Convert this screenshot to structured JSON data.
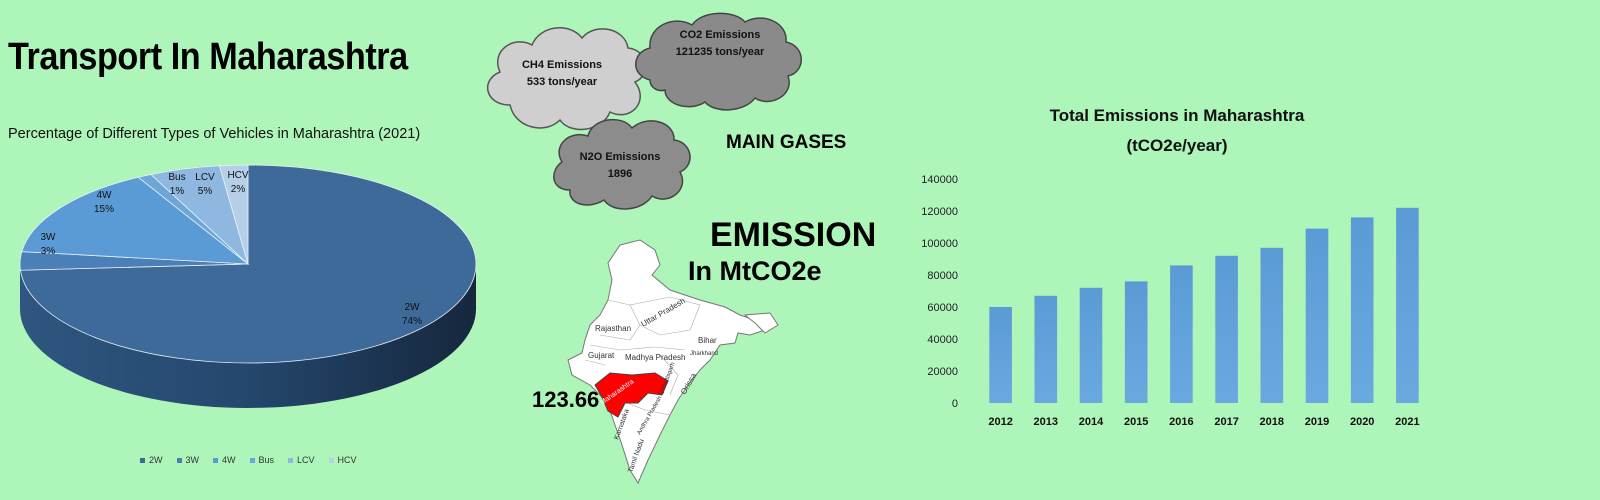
{
  "header": {
    "title": "Transport In Maharashtra"
  },
  "clouds": [
    {
      "line1": "CH4 Emissions",
      "line2": "533 tons/year"
    },
    {
      "line1": "CO2 Emissions",
      "line2": "121235 tons/year"
    },
    {
      "line1": "N2O Emissions",
      "line2": "1896"
    }
  ],
  "labels": {
    "main_gases": "MAIN GASES",
    "emission": "EMISSION",
    "in_mtco2e": "In MtCO2e",
    "map_value": "123.66"
  },
  "map": {
    "state_labels": [
      "Rajasthan",
      "Uttar Pradesh",
      "Bihar",
      "Gujarat",
      "Madhya Pradesh",
      "Maharashtra",
      "Orissa",
      "Karnataka",
      "Tamil Nadu",
      "Andhra Pradesh",
      "Chhattisgarh",
      "Jharkhand"
    ],
    "highlight_color": "#ff0000"
  },
  "colors": {
    "background": "#adf5b8",
    "bar": "#5b9bd5",
    "pie_dark": "#3d6a99"
  },
  "chart_data": [
    {
      "type": "pie",
      "title": "Percentage of Different Types of Vehicles in Maharashtra (2021)",
      "categories": [
        "2W",
        "3W",
        "4W",
        "Bus",
        "LCV",
        "HCV"
      ],
      "values": [
        74,
        3,
        15,
        1,
        5,
        2
      ],
      "value_labels": [
        "74%",
        "3%",
        "15%",
        "1%",
        "5%",
        "2%"
      ],
      "colors": [
        "#3d6a99",
        "#4a7fb8",
        "#5b9bd5",
        "#6fa6d8",
        "#8fb8e0",
        "#b6cfe8"
      ],
      "legend_position": "bottom"
    },
    {
      "type": "bar",
      "title": "Total Emissions in Maharashtra",
      "subtitle": "(tCO2e/year)",
      "categories": [
        "2012",
        "2013",
        "2014",
        "2015",
        "2016",
        "2017",
        "2018",
        "2019",
        "2020",
        "2021"
      ],
      "values": [
        60000,
        67000,
        72000,
        76000,
        86000,
        92000,
        97000,
        109000,
        116000,
        122000
      ],
      "yticks": [
        "0",
        "20000",
        "40000",
        "60000",
        "80000",
        "100000",
        "120000",
        "140000"
      ],
      "ylim": [
        0,
        140000
      ],
      "grid": false
    }
  ]
}
